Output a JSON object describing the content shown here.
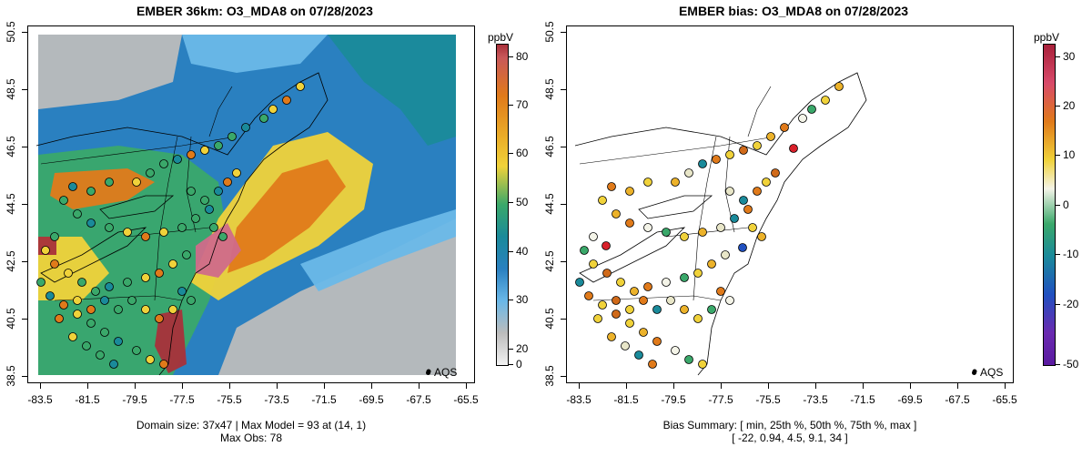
{
  "left_panel": {
    "title": "EMBER 36km: O3_MDA8 on 07/28/2023",
    "x_ticks": [
      "-83.5",
      "-81.5",
      "-79.5",
      "-77.5",
      "-75.5",
      "-73.5",
      "-71.5",
      "-69.5",
      "-67.5",
      "-65.5"
    ],
    "y_ticks": [
      "38.5",
      "40.5",
      "42.5",
      "44.5",
      "46.5",
      "48.5",
      "50.5"
    ],
    "caption_line1": "Domain size: 37x47 | Max Model = 93 at (14, 1)",
    "caption_line2": "Max Obs: 78",
    "legend_label": "AQS",
    "colorbar_unit": "ppbV",
    "colorbar_ticks": [
      "80",
      "70",
      "60",
      "50",
      "40",
      "30",
      "20",
      "0"
    ],
    "colors": {
      "high": "#a8303a",
      "orange": "#e07a1a",
      "yellow": "#f0d23a",
      "green": "#3aa86a",
      "teal": "#1a8a9a",
      "blue": "#2a80c0",
      "lightblue": "#6ab8e8",
      "gray": "#bcbcbc"
    }
  },
  "right_panel": {
    "title": "EMBER bias: O3_MDA8 on 07/28/2023",
    "x_ticks": [
      "-83.5",
      "-81.5",
      "-79.5",
      "-77.5",
      "-75.5",
      "-73.5",
      "-71.5",
      "-69.5",
      "-67.5",
      "-65.5"
    ],
    "y_ticks": [
      "38.5",
      "40.5",
      "42.5",
      "44.5",
      "46.5",
      "48.5",
      "50.5"
    ],
    "caption_line1": "Bias Summary: [ min, 25th %, 50th %, 75th %, max ]",
    "caption_line2": "[ -22,  0.94,  4.5,  9.1,  34 ]",
    "legend_label": "AQS",
    "colorbar_unit": "ppbV",
    "colorbar_ticks": [
      "30",
      "20",
      "10",
      "0",
      "-10",
      "-20",
      "-50"
    ],
    "bias_summary": {
      "min": -22,
      "p25": 0.94,
      "p50": 4.5,
      "p75": 9.1,
      "max": 34
    }
  },
  "map_data": {
    "lon_range": [
      -84.2,
      -65.0
    ],
    "lat_range": [
      38.3,
      50.6
    ]
  }
}
